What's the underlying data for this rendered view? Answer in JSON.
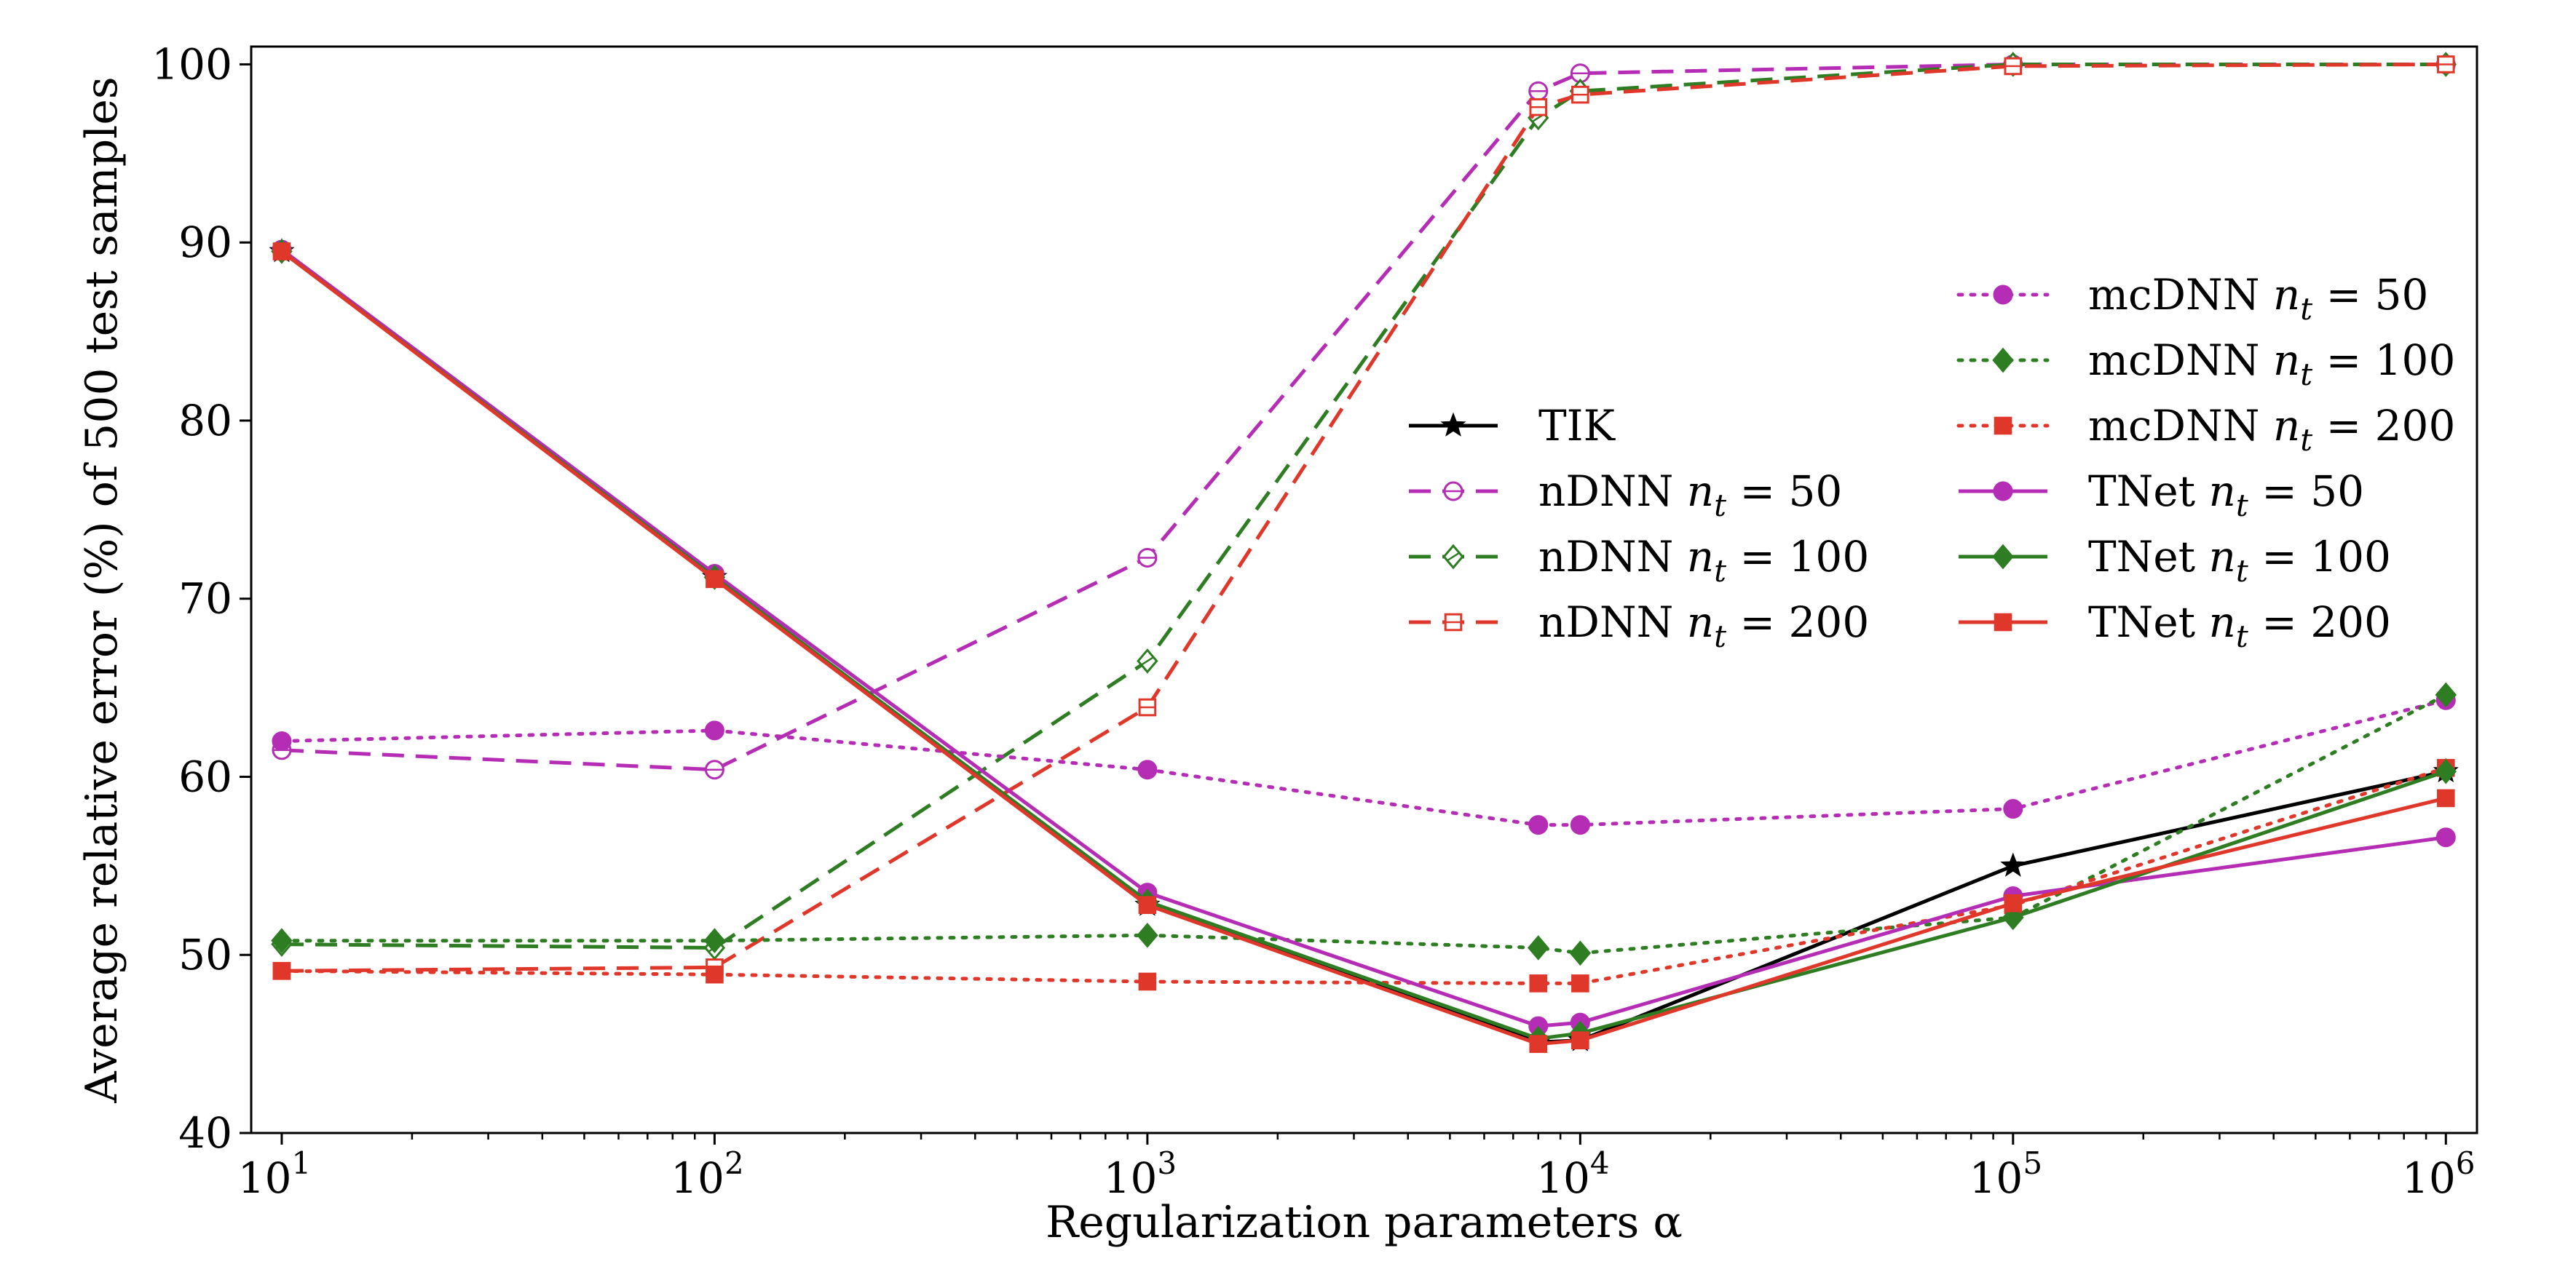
{
  "chart_data": {
    "type": "line",
    "xlabel": "Regularization parameters α",
    "ylabel": "Average relative error (%) of 500 test samples",
    "xscale": "log",
    "xlim": [
      8.5,
      1180000
    ],
    "ylim": [
      40,
      101
    ],
    "grid": false,
    "xticks": [
      {
        "value": 10,
        "base": "10",
        "exp": "1"
      },
      {
        "value": 100,
        "base": "10",
        "exp": "2"
      },
      {
        "value": 1000,
        "base": "10",
        "exp": "3"
      },
      {
        "value": 10000,
        "base": "10",
        "exp": "4"
      },
      {
        "value": 100000,
        "base": "10",
        "exp": "5"
      },
      {
        "value": 1000000,
        "base": "10",
        "exp": "6"
      }
    ],
    "yticks": [
      40,
      50,
      60,
      70,
      80,
      90,
      100
    ],
    "legends": [
      {
        "placement": "center",
        "entries": [
          0,
          1,
          2,
          3
        ]
      },
      {
        "placement": "right",
        "entries": [
          4,
          5,
          6,
          7,
          8,
          9
        ]
      }
    ],
    "series": [
      {
        "name": "TIK",
        "label_main": "TIK",
        "label_sub": "",
        "label_tail": "",
        "color": "#000000",
        "dash": "solid",
        "marker": "star",
        "fill": "full",
        "x": [
          10,
          100,
          1000,
          8000,
          10000,
          100000,
          1000000
        ],
        "y": [
          89.5,
          71.2,
          52.8,
          45.1,
          45.2,
          55.0,
          60.3
        ]
      },
      {
        "name": "nDNN n_t = 50",
        "label_main": "nDNN ",
        "label_sub": "t",
        "label_tail": " = 50",
        "color": "#b42db4",
        "dash": "dashed",
        "marker": "circle",
        "fill": "hollow",
        "x": [
          10,
          100,
          1000,
          8000,
          10000,
          100000,
          1000000
        ],
        "y": [
          61.5,
          60.4,
          72.3,
          98.5,
          99.5,
          100.0,
          100.0
        ]
      },
      {
        "name": "nDNN n_t = 100",
        "label_main": "nDNN ",
        "label_sub": "t",
        "label_tail": " = 100",
        "color": "#2f7d23",
        "dash": "dashed",
        "marker": "diamond",
        "fill": "hollow",
        "x": [
          10,
          100,
          1000,
          8000,
          10000,
          100000,
          1000000
        ],
        "y": [
          50.6,
          50.4,
          66.5,
          97.0,
          98.5,
          100.0,
          100.0
        ]
      },
      {
        "name": "nDNN n_t = 200",
        "label_main": "nDNN ",
        "label_sub": "t",
        "label_tail": " = 200",
        "color": "#e0372b",
        "dash": "dashed",
        "marker": "square",
        "fill": "hollow",
        "x": [
          10,
          100,
          1000,
          8000,
          10000,
          100000,
          1000000
        ],
        "y": [
          49.1,
          49.3,
          63.9,
          97.6,
          98.3,
          99.9,
          100.0
        ]
      },
      {
        "name": "mcDNN n_t = 50",
        "label_main": "mcDNN ",
        "label_sub": "t",
        "label_tail": " = 50",
        "color": "#b42db4",
        "dash": "dotted",
        "marker": "circle",
        "fill": "full",
        "x": [
          10,
          100,
          1000,
          8000,
          10000,
          100000,
          1000000
        ],
        "y": [
          62.0,
          62.6,
          60.4,
          57.3,
          57.3,
          58.2,
          64.3
        ]
      },
      {
        "name": "mcDNN n_t = 100",
        "label_main": "mcDNN ",
        "label_sub": "t",
        "label_tail": " = 100",
        "color": "#2f7d23",
        "dash": "dotted",
        "marker": "diamond",
        "fill": "full",
        "x": [
          10,
          100,
          1000,
          8000,
          10000,
          100000,
          1000000
        ],
        "y": [
          50.8,
          50.8,
          51.1,
          50.4,
          50.1,
          52.1,
          64.6
        ]
      },
      {
        "name": "mcDNN n_t = 200",
        "label_main": "mcDNN ",
        "label_sub": "t",
        "label_tail": " = 200",
        "color": "#e0372b",
        "dash": "dotted",
        "marker": "square",
        "fill": "full",
        "x": [
          10,
          100,
          1000,
          8000,
          10000,
          100000,
          1000000
        ],
        "y": [
          49.1,
          48.9,
          48.5,
          48.4,
          48.4,
          52.8,
          60.5
        ]
      },
      {
        "name": "TNet n_t = 50",
        "label_main": "TNet ",
        "label_sub": "t",
        "label_tail": " = 50",
        "color": "#b42db4",
        "dash": "solid",
        "marker": "circle",
        "fill": "full",
        "x": [
          10,
          100,
          1000,
          8000,
          10000,
          100000,
          1000000
        ],
        "y": [
          89.6,
          71.4,
          53.5,
          46.0,
          46.2,
          53.3,
          56.6
        ]
      },
      {
        "name": "TNet n_t = 100",
        "label_main": "TNet ",
        "label_sub": "t",
        "label_tail": " = 100",
        "color": "#2f7d23",
        "dash": "solid",
        "marker": "diamond",
        "fill": "full",
        "x": [
          10,
          100,
          1000,
          8000,
          10000,
          100000,
          1000000
        ],
        "y": [
          89.5,
          71.2,
          53.0,
          45.3,
          45.6,
          52.1,
          60.3
        ]
      },
      {
        "name": "TNet n_t = 200",
        "label_main": "TNet ",
        "label_sub": "t",
        "label_tail": " = 200",
        "color": "#e0372b",
        "dash": "solid",
        "marker": "square",
        "fill": "full",
        "x": [
          10,
          100,
          1000,
          8000,
          10000,
          100000,
          1000000
        ],
        "y": [
          89.5,
          71.1,
          52.8,
          45.0,
          45.2,
          52.9,
          58.8
        ]
      }
    ]
  }
}
